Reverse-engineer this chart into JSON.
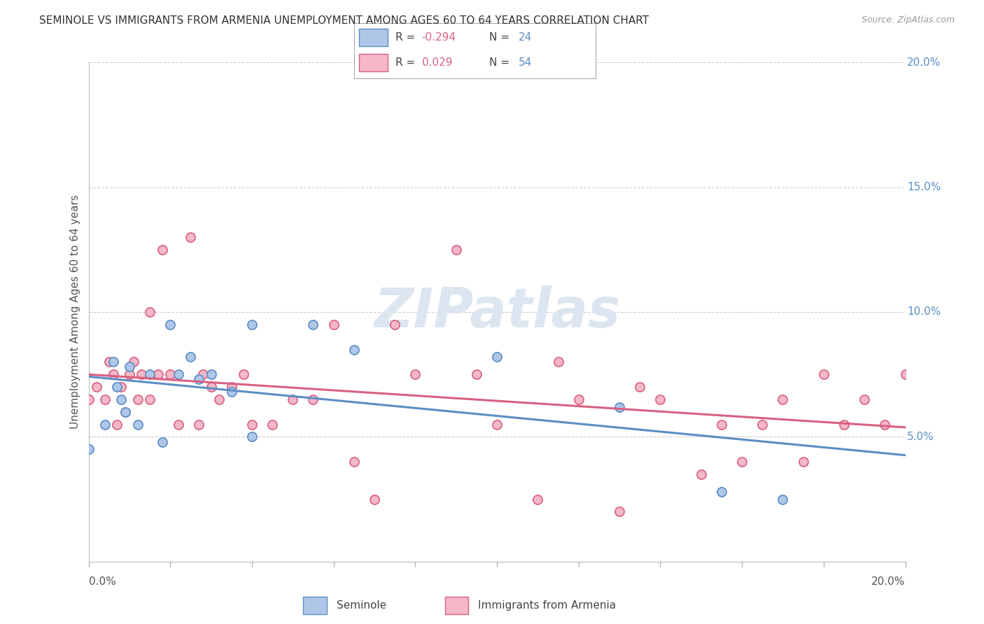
{
  "title": "SEMINOLE VS IMMIGRANTS FROM ARMENIA UNEMPLOYMENT AMONG AGES 60 TO 64 YEARS CORRELATION CHART",
  "source": "Source: ZipAtlas.com",
  "ylabel": "Unemployment Among Ages 60 to 64 years",
  "xmin": 0.0,
  "xmax": 0.2,
  "ymin": 0.0,
  "ymax": 0.2,
  "yticks": [
    0.05,
    0.1,
    0.15,
    0.2
  ],
  "ytick_labels": [
    "5.0%",
    "10.0%",
    "15.0%",
    "20.0%"
  ],
  "seminole_R": -0.294,
  "seminole_N": 24,
  "armenia_R": 0.029,
  "armenia_N": 54,
  "seminole_color": "#aec6e8",
  "armenia_color": "#f4b8c8",
  "seminole_edge_color": "#5b8ec4",
  "armenia_edge_color": "#d96080",
  "seminole_line_color": "#5b8ec4",
  "armenia_line_color": "#d96080",
  "watermark_color": "#dde5f0",
  "legend_R_color": "#d96080",
  "legend_N_color": "#5b8ec4",
  "seminole_x": [
    0.0,
    0.004,
    0.006,
    0.007,
    0.008,
    0.009,
    0.01,
    0.012,
    0.015,
    0.018,
    0.02,
    0.022,
    0.025,
    0.027,
    0.03,
    0.035,
    0.04,
    0.04,
    0.055,
    0.065,
    0.1,
    0.13,
    0.155,
    0.17
  ],
  "seminole_y": [
    0.045,
    0.055,
    0.08,
    0.07,
    0.065,
    0.06,
    0.078,
    0.055,
    0.075,
    0.048,
    0.095,
    0.075,
    0.082,
    0.073,
    0.075,
    0.068,
    0.05,
    0.095,
    0.095,
    0.085,
    0.082,
    0.062,
    0.028,
    0.025
  ],
  "armenia_x": [
    0.0,
    0.002,
    0.004,
    0.005,
    0.006,
    0.007,
    0.008,
    0.009,
    0.01,
    0.011,
    0.012,
    0.013,
    0.015,
    0.015,
    0.017,
    0.018,
    0.02,
    0.022,
    0.025,
    0.027,
    0.028,
    0.03,
    0.032,
    0.035,
    0.038,
    0.04,
    0.045,
    0.05,
    0.055,
    0.06,
    0.065,
    0.07,
    0.075,
    0.08,
    0.09,
    0.095,
    0.1,
    0.11,
    0.115,
    0.12,
    0.13,
    0.135,
    0.14,
    0.15,
    0.155,
    0.16,
    0.165,
    0.17,
    0.175,
    0.18,
    0.185,
    0.19,
    0.195,
    0.2
  ],
  "armenia_y": [
    0.065,
    0.07,
    0.065,
    0.08,
    0.075,
    0.055,
    0.07,
    0.06,
    0.075,
    0.08,
    0.065,
    0.075,
    0.065,
    0.1,
    0.075,
    0.125,
    0.075,
    0.055,
    0.13,
    0.055,
    0.075,
    0.07,
    0.065,
    0.07,
    0.075,
    0.055,
    0.055,
    0.065,
    0.065,
    0.095,
    0.04,
    0.025,
    0.095,
    0.075,
    0.125,
    0.075,
    0.055,
    0.025,
    0.08,
    0.065,
    0.02,
    0.07,
    0.065,
    0.035,
    0.055,
    0.04,
    0.055,
    0.065,
    0.04,
    0.075,
    0.055,
    0.065,
    0.055,
    0.075
  ]
}
